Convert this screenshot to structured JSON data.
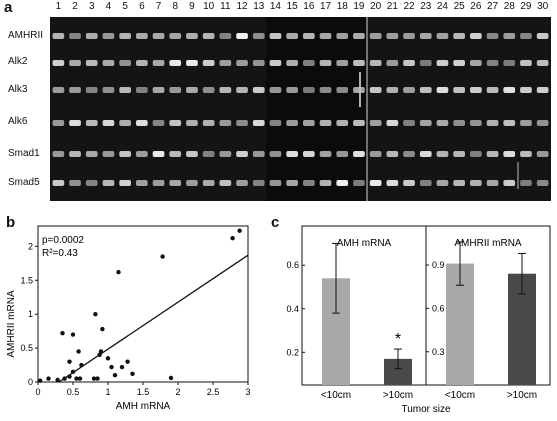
{
  "panel_a": {
    "letter": "a",
    "lanes": [
      "1",
      "2",
      "3",
      "4",
      "5",
      "6",
      "7",
      "8",
      "9",
      "10",
      "11",
      "12",
      "13",
      "14",
      "15",
      "16",
      "17",
      "18",
      "19",
      "20",
      "21",
      "22",
      "23",
      "24",
      "25",
      "26",
      "27",
      "28",
      "29",
      "30"
    ],
    "rows": [
      "AMHRII",
      "Alk2",
      "Alk3",
      "Alk6",
      "Smad1",
      "Smad5"
    ]
  },
  "panel_b": {
    "letter": "b",
    "p_text": "p=0.0002",
    "r_text": "R²=0.43",
    "xlabel": "AMH mRNA",
    "ylabel": "AMHRII mRNA",
    "xticks": [
      "0",
      "0.5",
      "1",
      "1.5",
      "2",
      "2.5",
      "3"
    ],
    "yticks": [
      "0",
      "0.5",
      "1",
      "1.5",
      "2"
    ]
  },
  "panel_c": {
    "letter": "c",
    "xlabel": "Tumor size",
    "star": "*"
  },
  "chart_data": [
    {
      "type": "scatter",
      "xlabel": "AMH mRNA",
      "ylabel": "AMHRII mRNA",
      "xlim": [
        0,
        3
      ],
      "ylim": [
        0,
        2.3
      ],
      "annotations": [
        "p=0.0002",
        "R²=0.43"
      ],
      "points": [
        {
          "x": 0.03,
          "y": 0.02
        },
        {
          "x": 0.15,
          "y": 0.05
        },
        {
          "x": 0.28,
          "y": 0.03
        },
        {
          "x": 0.38,
          "y": 0.05
        },
        {
          "x": 0.45,
          "y": 0.08
        },
        {
          "x": 0.5,
          "y": 0.15
        },
        {
          "x": 0.55,
          "y": 0.05
        },
        {
          "x": 0.6,
          "y": 0.05
        },
        {
          "x": 0.62,
          "y": 0.25
        },
        {
          "x": 0.45,
          "y": 0.3
        },
        {
          "x": 0.5,
          "y": 0.7
        },
        {
          "x": 0.58,
          "y": 0.45
        },
        {
          "x": 0.35,
          "y": 0.72
        },
        {
          "x": 0.8,
          "y": 0.05
        },
        {
          "x": 0.85,
          "y": 0.05
        },
        {
          "x": 0.88,
          "y": 0.4
        },
        {
          "x": 0.9,
          "y": 0.45
        },
        {
          "x": 0.92,
          "y": 0.78
        },
        {
          "x": 0.82,
          "y": 1.0
        },
        {
          "x": 1.0,
          "y": 0.35
        },
        {
          "x": 1.05,
          "y": 0.22
        },
        {
          "x": 1.1,
          "y": 0.1
        },
        {
          "x": 1.15,
          "y": 1.62
        },
        {
          "x": 1.2,
          "y": 0.22
        },
        {
          "x": 1.28,
          "y": 0.3
        },
        {
          "x": 1.35,
          "y": 0.12
        },
        {
          "x": 1.78,
          "y": 1.85
        },
        {
          "x": 1.9,
          "y": 0.06
        },
        {
          "x": 2.78,
          "y": 2.12
        },
        {
          "x": 2.88,
          "y": 2.23
        }
      ],
      "fit_line": {
        "x": [
          0.3,
          3.0
        ],
        "y": [
          0.0,
          1.87
        ]
      }
    },
    {
      "type": "bar",
      "title": "AMH mRNA",
      "categories": [
        "<10cm",
        ">10cm"
      ],
      "values": [
        0.54,
        0.17
      ],
      "errors": [
        0.16,
        0.045
      ],
      "ylim": [
        0.05,
        0.78
      ],
      "yticks": [
        "0.2",
        "0.4",
        "0.6"
      ],
      "colors": [
        "#a8a8a8",
        "#4a4a4a"
      ]
    },
    {
      "type": "bar",
      "title": "AMHRII mRNA",
      "categories": [
        "<10cm",
        ">10cm"
      ],
      "values": [
        0.91,
        0.84
      ],
      "errors": [
        0.15,
        0.14
      ],
      "ylim": [
        0.07,
        1.17
      ],
      "yticks": [
        "0.3",
        "0.6",
        "0.9"
      ],
      "colors": [
        "#a8a8a8",
        "#4a4a4a"
      ]
    }
  ]
}
